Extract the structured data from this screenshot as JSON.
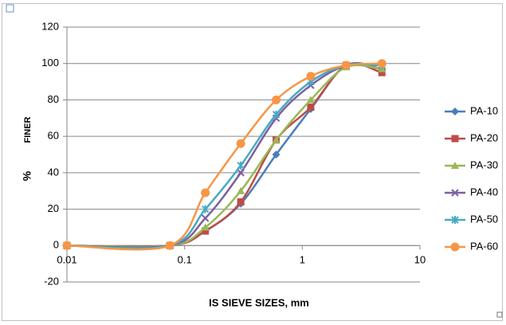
{
  "chart_data": {
    "type": "line",
    "xlabel": "IS SIEVE SIZES, mm",
    "ylabel": "FINER",
    "ylabel_unit": "%",
    "x": [
      0.01,
      0.075,
      0.15,
      0.3,
      0.6,
      1.18,
      2.36,
      4.75
    ],
    "xscale": "log",
    "xlim": [
      0.01,
      10
    ],
    "xticks": [
      0.01,
      0.1,
      1,
      10
    ],
    "ylim": [
      -20,
      120
    ],
    "yticks": [
      -20,
      0,
      20,
      40,
      60,
      80,
      100,
      120
    ],
    "grid": true,
    "legend": "right",
    "series": [
      {
        "name": "PA-10",
        "color": "#4a7ebb",
        "marker": "diamond",
        "values": [
          0,
          0,
          8,
          23,
          50,
          75,
          99,
          97
        ]
      },
      {
        "name": "PA-20",
        "color": "#be4b48",
        "marker": "square",
        "values": [
          0,
          0,
          8,
          24,
          58,
          76,
          99,
          95
        ]
      },
      {
        "name": "PA-30",
        "color": "#98b954",
        "marker": "triangle",
        "values": [
          0,
          0,
          10,
          30,
          58,
          80,
          98,
          97
        ]
      },
      {
        "name": "PA-40",
        "color": "#7d60a0",
        "marker": "cross",
        "values": [
          0,
          0,
          15,
          40,
          70,
          88,
          99,
          99
        ]
      },
      {
        "name": "PA-50",
        "color": "#46aac5",
        "marker": "star",
        "values": [
          0,
          0,
          20,
          44,
          72,
          90,
          99,
          99
        ]
      },
      {
        "name": "PA-60",
        "color": "#f79646",
        "marker": "circle",
        "values": [
          0,
          0,
          29,
          56,
          80,
          93,
          99,
          100
        ]
      }
    ]
  }
}
